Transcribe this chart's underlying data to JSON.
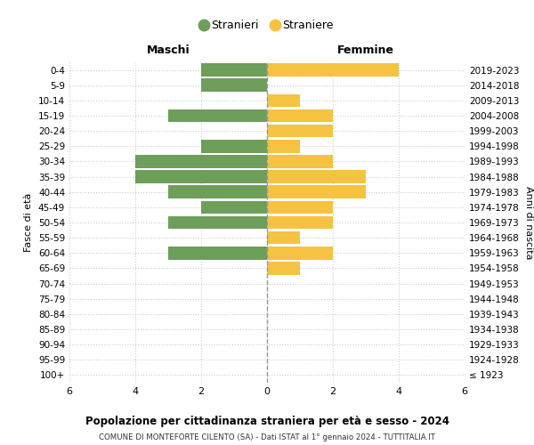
{
  "age_groups": [
    "100+",
    "95-99",
    "90-94",
    "85-89",
    "80-84",
    "75-79",
    "70-74",
    "65-69",
    "60-64",
    "55-59",
    "50-54",
    "45-49",
    "40-44",
    "35-39",
    "30-34",
    "25-29",
    "20-24",
    "15-19",
    "10-14",
    "5-9",
    "0-4"
  ],
  "birth_years": [
    "≤ 1923",
    "1924-1928",
    "1929-1933",
    "1934-1938",
    "1939-1943",
    "1944-1948",
    "1949-1953",
    "1954-1958",
    "1959-1963",
    "1964-1968",
    "1969-1973",
    "1974-1978",
    "1979-1983",
    "1984-1988",
    "1989-1993",
    "1994-1998",
    "1999-2003",
    "2004-2008",
    "2009-2013",
    "2014-2018",
    "2019-2023"
  ],
  "maschi": [
    0,
    0,
    0,
    0,
    0,
    0,
    0,
    0,
    3,
    0,
    3,
    2,
    3,
    4,
    4,
    2,
    0,
    3,
    0,
    2,
    2
  ],
  "femmine": [
    0,
    0,
    0,
    0,
    0,
    0,
    0,
    1,
    2,
    1,
    2,
    2,
    3,
    3,
    2,
    1,
    2,
    2,
    1,
    0,
    4
  ],
  "color_maschi": "#6d9e5a",
  "color_femmine": "#f5c242",
  "title": "Popolazione per cittadinanza straniera per età e sesso - 2024",
  "subtitle": "COMUNE DI MONTEFORTE CILENTO (SA) - Dati ISTAT al 1° gennaio 2024 - TUTTITALIA.IT",
  "legend_maschi": "Stranieri",
  "legend_femmine": "Straniere",
  "xlabel_left": "Maschi",
  "xlabel_right": "Femmine",
  "ylabel": "Fasce di età",
  "ylabel_right": "Anni di nascita",
  "xlim": 6,
  "bar_height": 0.85,
  "background_color": "#ffffff",
  "grid_color": "#cccccc",
  "center_line_color": "#999999"
}
